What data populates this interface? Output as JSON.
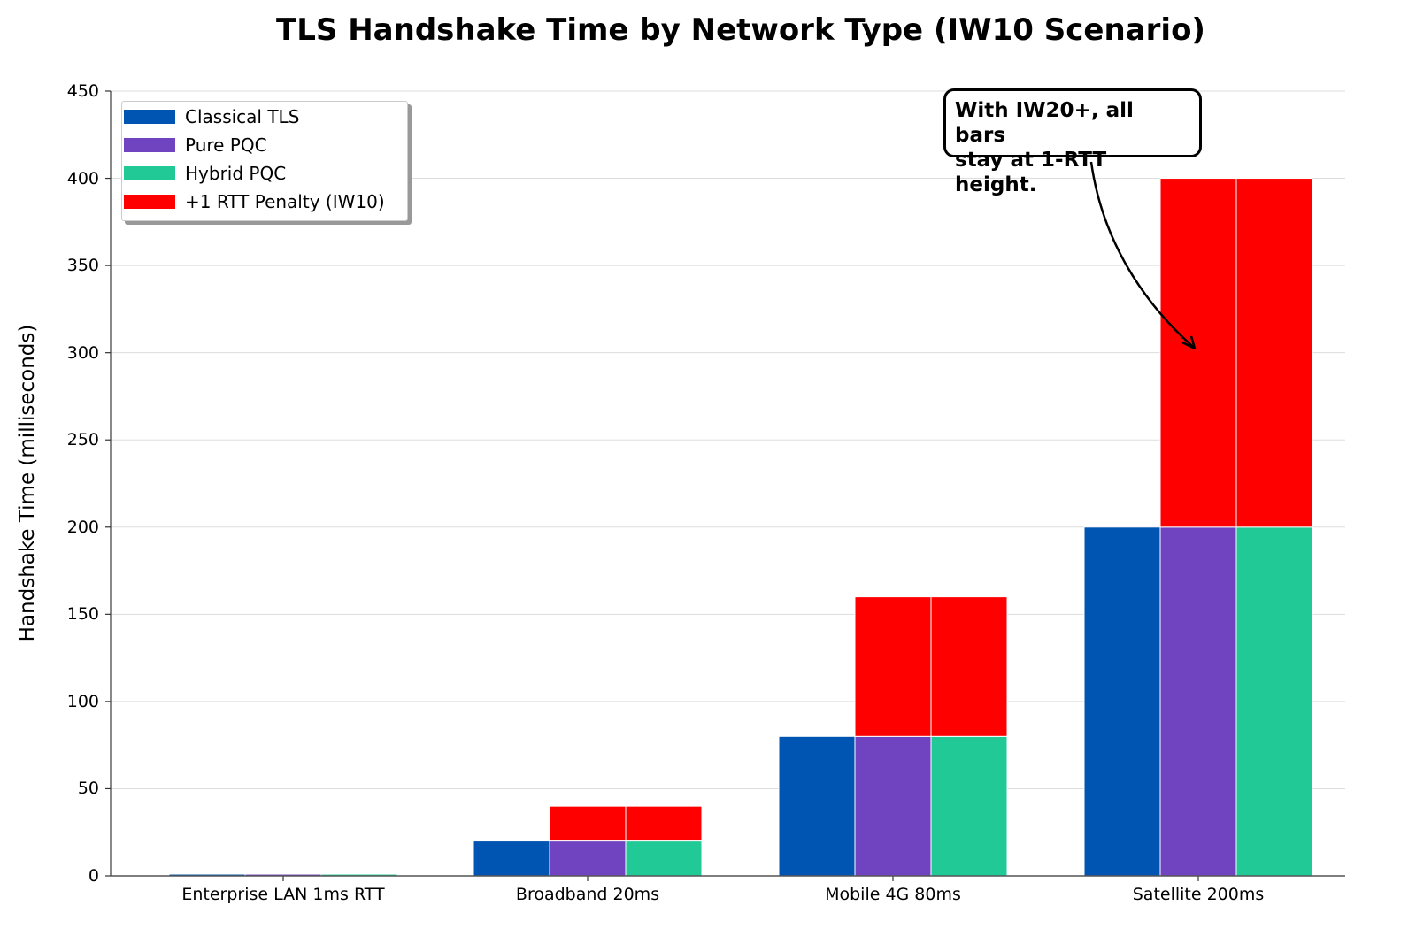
{
  "title": "TLS Handshake Time by Network Type (IW10 Scenario)",
  "y_axis_label": "Handshake Time (milliseconds)",
  "y_ticks": [
    "0",
    "50",
    "100",
    "150",
    "200",
    "250",
    "300",
    "350",
    "400",
    "450"
  ],
  "x_ticks": [
    "Enterprise LAN 1ms RTT",
    "Broadband 20ms",
    "Mobile 4G 80ms",
    "Satellite 200ms"
  ],
  "legend": [
    {
      "label": "Classical TLS",
      "color": "#0055b3"
    },
    {
      "label": "Pure PQC",
      "color": "#7043c0"
    },
    {
      "label": "Hybrid PQC",
      "color": "#20c995"
    },
    {
      "label": "+1 RTT Penalty (IW10)",
      "color": "#ff0000"
    }
  ],
  "annotation": {
    "line1": "With IW20+, all bars",
    "line2": "stay at 1-RTT height."
  },
  "chart_data": {
    "type": "bar",
    "stacked": true,
    "title": "TLS Handshake Time by Network Type (IW10 Scenario)",
    "xlabel": "",
    "ylabel": "Handshake Time (milliseconds)",
    "ylim": [
      0,
      450
    ],
    "yticks": [
      0,
      50,
      100,
      150,
      200,
      250,
      300,
      350,
      400,
      450
    ],
    "grid": "y",
    "legend_position": "upper left",
    "categories": [
      "Enterprise LAN 1ms RTT",
      "Broadband 20ms",
      "Mobile 4G 80ms",
      "Satellite 200ms"
    ],
    "series": [
      {
        "name": "Classical TLS",
        "color": "#0055b3",
        "values": [
          1,
          20,
          80,
          200
        ]
      },
      {
        "name": "Pure PQC",
        "color": "#7043c0",
        "values": [
          1,
          20,
          80,
          200
        ]
      },
      {
        "name": "Hybrid PQC",
        "color": "#20c995",
        "values": [
          1,
          20,
          80,
          200
        ]
      },
      {
        "name": "+1 RTT Penalty (IW10)",
        "color": "#ff0000",
        "stacked_on": [
          "Pure PQC",
          "Hybrid PQC"
        ],
        "values_pure_pqc": [
          0,
          20,
          80,
          200
        ],
        "values_hybrid_pqc": [
          0,
          20,
          80,
          200
        ]
      }
    ],
    "totals": {
      "Classical TLS": [
        1,
        20,
        80,
        200
      ],
      "Pure PQC": [
        1,
        40,
        160,
        400
      ],
      "Hybrid PQC": [
        1,
        40,
        160,
        400
      ]
    },
    "annotations": [
      {
        "text": "With IW20+, all bars stay at 1-RTT height.",
        "arrow_to": {
          "category": "Satellite 200ms",
          "y": 300
        }
      }
    ]
  }
}
